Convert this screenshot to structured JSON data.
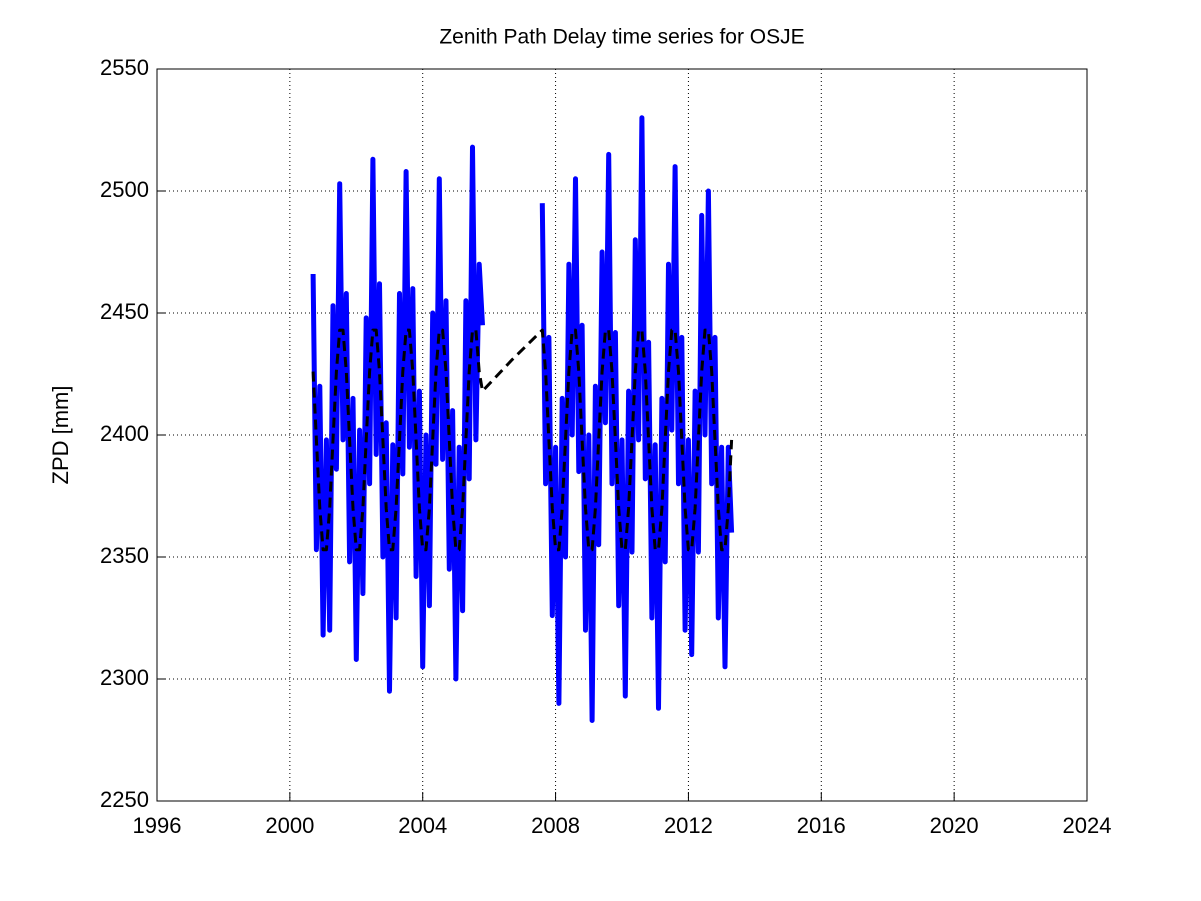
{
  "chart_data": {
    "type": "line",
    "title": "Zenith Path Delay time series for OSJE",
    "y_label": "ZPD [mm]",
    "x": [
      2000.7,
      2000.8,
      2000.9,
      2001.0,
      2001.1,
      2001.2,
      2001.3,
      2001.4,
      2001.5,
      2001.6,
      2001.7,
      2001.8,
      2001.9,
      2002.0,
      2002.1,
      2002.2,
      2002.3,
      2002.4,
      2002.5,
      2002.6,
      2002.7,
      2002.8,
      2002.9,
      2003.0,
      2003.1,
      2003.2,
      2003.3,
      2003.4,
      2003.5,
      2003.6,
      2003.7,
      2003.8,
      2003.9,
      2004.0,
      2004.1,
      2004.2,
      2004.3,
      2004.4,
      2004.5,
      2004.6,
      2004.7,
      2004.8,
      2004.9,
      2005.0,
      2005.1,
      2005.2,
      2005.3,
      2005.4,
      2005.5,
      2005.6,
      2005.7,
      2005.8,
      2006.7,
      2007.6,
      2007.7,
      2007.8,
      2007.9,
      2008.0,
      2008.1,
      2008.2,
      2008.3,
      2008.4,
      2008.5,
      2008.6,
      2008.7,
      2008.8,
      2008.9,
      2009.0,
      2009.1,
      2009.2,
      2009.3,
      2009.4,
      2009.5,
      2009.6,
      2009.7,
      2009.8,
      2009.9,
      2010.0,
      2010.1,
      2010.2,
      2010.3,
      2010.4,
      2010.5,
      2010.6,
      2010.7,
      2010.8,
      2010.9,
      2011.0,
      2011.1,
      2011.2,
      2011.3,
      2011.4,
      2011.5,
      2011.6,
      2011.7,
      2011.8,
      2011.9,
      2012.0,
      2012.1,
      2012.2,
      2012.3,
      2012.4,
      2012.5,
      2012.6,
      2012.7,
      2012.8,
      2012.9,
      2013.0,
      2013.1,
      2013.2,
      2013.3
    ],
    "series": [
      {
        "color": "#0000ff",
        "dashed": false,
        "values": [
          2466,
          2353,
          2420,
          2318,
          2398,
          2320,
          2453,
          2386,
          2503,
          2398,
          2458,
          2348,
          2415,
          2308,
          2402,
          2335,
          2448,
          2380,
          2513,
          2392,
          2462,
          2350,
          2405,
          2295,
          2396,
          2325,
          2458,
          2384,
          2508,
          2395,
          2460,
          2342,
          2418,
          2305,
          2400,
          2330,
          2450,
          2388,
          2505,
          2390,
          2455,
          2345,
          2410,
          2300,
          2395,
          2328,
          2455,
          2382,
          2518,
          2398,
          2470,
          2445,
          null,
          2495,
          2380,
          2440,
          2326,
          2395,
          2290,
          2415,
          2350,
          2470,
          2400,
          2505,
          2385,
          2445,
          2320,
          2400,
          2283,
          2420,
          2355,
          2475,
          2405,
          2515,
          2380,
          2442,
          2330,
          2398,
          2293,
          2418,
          2352,
          2480,
          2398,
          2530,
          2382,
          2438,
          2325,
          2396,
          2288,
          2415,
          2348,
          2470,
          2402,
          2510,
          2380,
          2440,
          2320,
          2398,
          2310,
          2418,
          2352,
          2490,
          2400,
          2500,
          2380,
          2440,
          2325,
          2395,
          2305,
          2395,
          2360
        ]
      },
      {
        "color": "#000000",
        "dashed": true,
        "values": [
          2426,
          2398,
          2370,
          2353,
          2353,
          2370,
          2398,
          2426,
          2443,
          2443,
          2426,
          2398,
          2370,
          2353,
          2353,
          2370,
          2398,
          2426,
          2443,
          2443,
          2426,
          2398,
          2370,
          2353,
          2353,
          2370,
          2398,
          2426,
          2443,
          2443,
          2426,
          2398,
          2370,
          2353,
          2353,
          2370,
          2398,
          2426,
          2443,
          2443,
          2426,
          2398,
          2370,
          2353,
          2353,
          2370,
          2398,
          2426,
          2443,
          2443,
          2426,
          2418,
          2431,
          2443,
          2426,
          2398,
          2370,
          2353,
          2353,
          2370,
          2398,
          2426,
          2443,
          2443,
          2426,
          2398,
          2370,
          2353,
          2353,
          2370,
          2398,
          2426,
          2443,
          2443,
          2426,
          2398,
          2370,
          2353,
          2353,
          2370,
          2398,
          2426,
          2443,
          2443,
          2426,
          2398,
          2370,
          2353,
          2353,
          2370,
          2398,
          2426,
          2443,
          2443,
          2426,
          2398,
          2370,
          2353,
          2353,
          2370,
          2398,
          2426,
          2443,
          2443,
          2426,
          2398,
          2370,
          2353,
          2353,
          2370,
          2398
        ]
      }
    ],
    "xlim": [
      1996,
      2024
    ],
    "xticks": [
      1996,
      2000,
      2004,
      2008,
      2012,
      2016,
      2020,
      2024
    ],
    "ylim": [
      2250,
      2550
    ],
    "yticks": [
      2250,
      2300,
      2350,
      2400,
      2450,
      2500,
      2550
    ],
    "grid": true
  }
}
